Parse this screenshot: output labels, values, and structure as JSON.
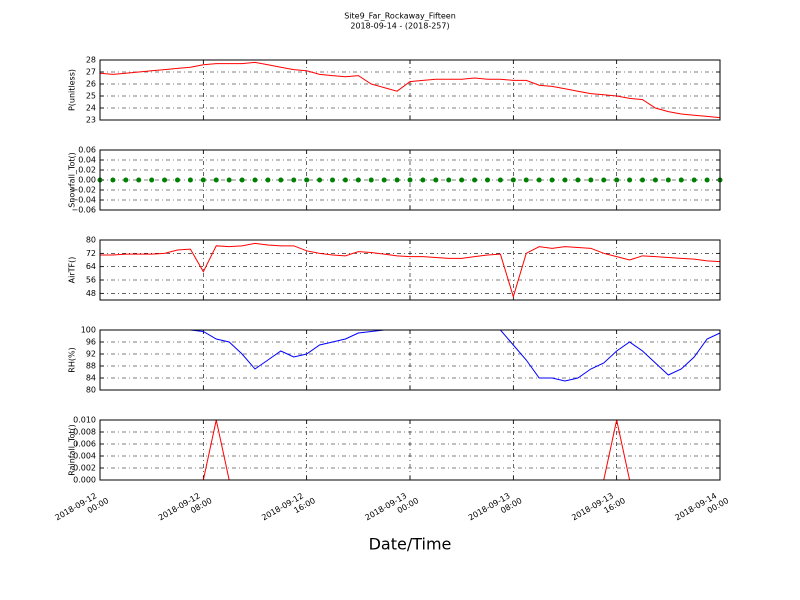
{
  "chart_data": [
    {
      "type": "line",
      "title": "Site9_Far_Rockaway_Fifteen",
      "subtitle": "2018-09-14 - (2018-257)",
      "ylabel": "P(unitless)",
      "grid": true,
      "x": [
        "2018-09-12 00:00",
        "2018-09-12 01:00",
        "2018-09-12 02:00",
        "2018-09-12 03:00",
        "2018-09-12 04:00",
        "2018-09-12 05:00",
        "2018-09-12 06:00",
        "2018-09-12 07:00",
        "2018-09-12 08:00",
        "2018-09-12 09:00",
        "2018-09-12 10:00",
        "2018-09-12 11:00",
        "2018-09-12 12:00",
        "2018-09-12 13:00",
        "2018-09-12 14:00",
        "2018-09-12 15:00",
        "2018-09-12 16:00",
        "2018-09-12 17:00",
        "2018-09-12 18:00",
        "2018-09-12 19:00",
        "2018-09-12 20:00",
        "2018-09-12 21:00",
        "2018-09-12 22:00",
        "2018-09-12 23:00",
        "2018-09-13 00:00",
        "2018-09-13 01:00",
        "2018-09-13 02:00",
        "2018-09-13 03:00",
        "2018-09-13 04:00",
        "2018-09-13 05:00",
        "2018-09-13 06:00",
        "2018-09-13 07:00",
        "2018-09-13 08:00",
        "2018-09-13 09:00",
        "2018-09-13 10:00",
        "2018-09-13 11:00",
        "2018-09-13 12:00",
        "2018-09-13 13:00",
        "2018-09-13 14:00",
        "2018-09-13 15:00",
        "2018-09-13 16:00",
        "2018-09-13 17:00",
        "2018-09-13 18:00",
        "2018-09-13 19:00",
        "2018-09-13 20:00",
        "2018-09-13 21:00",
        "2018-09-13 22:00",
        "2018-09-13 23:00",
        "2018-09-14 00:00"
      ],
      "series": [
        {
          "color": "#ff0000",
          "values": [
            26.9,
            26.8,
            26.9,
            27.0,
            27.1,
            27.2,
            27.3,
            27.4,
            27.6,
            27.7,
            27.7,
            27.7,
            27.8,
            27.6,
            27.4,
            27.2,
            27.1,
            26.8,
            26.7,
            26.6,
            26.7,
            26.0,
            25.7,
            25.4,
            26.2,
            26.3,
            26.4,
            26.4,
            26.4,
            26.5,
            26.4,
            26.4,
            26.3,
            26.3,
            25.9,
            25.8,
            25.6,
            25.4,
            25.2,
            25.1,
            25.0,
            24.8,
            24.7,
            24.0,
            23.7,
            23.5,
            23.4,
            23.3,
            23.2
          ]
        }
      ],
      "xlim": [
        "2018-09-12 00:00",
        "2018-09-14 00:00"
      ],
      "xticks": [
        "2018-09-12 00:00",
        "2018-09-12 08:00",
        "2018-09-12 16:00",
        "2018-09-13 00:00",
        "2018-09-13 08:00",
        "2018-09-13 16:00",
        "2018-09-14 00:00"
      ],
      "ylim": [
        23,
        28
      ],
      "yticks": [
        23,
        24,
        25,
        26,
        27,
        28
      ]
    },
    {
      "type": "scatter",
      "ylabel": "Snowfall_Tot()",
      "grid": true,
      "x": [
        "2018-09-12 00:00",
        "2018-09-12 01:00",
        "2018-09-12 02:00",
        "2018-09-12 03:00",
        "2018-09-12 04:00",
        "2018-09-12 05:00",
        "2018-09-12 06:00",
        "2018-09-12 07:00",
        "2018-09-12 08:00",
        "2018-09-12 09:00",
        "2018-09-12 10:00",
        "2018-09-12 11:00",
        "2018-09-12 12:00",
        "2018-09-12 13:00",
        "2018-09-12 14:00",
        "2018-09-12 15:00",
        "2018-09-12 16:00",
        "2018-09-12 17:00",
        "2018-09-12 18:00",
        "2018-09-12 19:00",
        "2018-09-12 20:00",
        "2018-09-12 21:00",
        "2018-09-12 22:00",
        "2018-09-12 23:00",
        "2018-09-13 00:00",
        "2018-09-13 01:00",
        "2018-09-13 02:00",
        "2018-09-13 03:00",
        "2018-09-13 04:00",
        "2018-09-13 05:00",
        "2018-09-13 06:00",
        "2018-09-13 07:00",
        "2018-09-13 08:00",
        "2018-09-13 09:00",
        "2018-09-13 10:00",
        "2018-09-13 11:00",
        "2018-09-13 12:00",
        "2018-09-13 13:00",
        "2018-09-13 14:00",
        "2018-09-13 15:00",
        "2018-09-13 16:00",
        "2018-09-13 17:00",
        "2018-09-13 18:00",
        "2018-09-13 19:00",
        "2018-09-13 20:00",
        "2018-09-13 21:00",
        "2018-09-13 22:00",
        "2018-09-13 23:00",
        "2018-09-14 00:00"
      ],
      "series": [
        {
          "color": "#008000",
          "values": [
            0,
            0,
            0,
            0,
            0,
            0,
            0,
            0,
            0,
            0,
            0,
            0,
            0,
            0,
            0,
            0,
            0,
            0,
            0,
            0,
            0,
            0,
            0,
            0,
            0,
            0,
            0,
            0,
            0,
            0,
            0,
            0,
            0,
            0,
            0,
            0,
            0,
            0,
            0,
            0,
            0,
            0,
            0,
            0,
            0,
            0,
            0,
            0,
            0
          ]
        }
      ],
      "xlim": [
        "2018-09-12 00:00",
        "2018-09-14 00:00"
      ],
      "xticks": [
        "2018-09-12 00:00",
        "2018-09-12 08:00",
        "2018-09-12 16:00",
        "2018-09-13 00:00",
        "2018-09-13 08:00",
        "2018-09-13 16:00",
        "2018-09-14 00:00"
      ],
      "ylim": [
        -0.06,
        0.06
      ],
      "yticks": [
        {
          "value": -0.06,
          "label": "−0.06"
        },
        {
          "value": -0.04,
          "label": "−0.04"
        },
        {
          "value": -0.02,
          "label": "−0.02"
        },
        {
          "value": 0,
          "label": "0.00"
        },
        0.02,
        0.04,
        0.06
      ]
    },
    {
      "type": "line",
      "ylabel": "AirTF()",
      "grid": true,
      "x": [
        "2018-09-12 00:00",
        "2018-09-12 01:00",
        "2018-09-12 02:00",
        "2018-09-12 03:00",
        "2018-09-12 04:00",
        "2018-09-12 05:00",
        "2018-09-12 06:00",
        "2018-09-12 07:00",
        "2018-09-12 08:00",
        "2018-09-12 09:00",
        "2018-09-12 10:00",
        "2018-09-12 11:00",
        "2018-09-12 12:00",
        "2018-09-12 13:00",
        "2018-09-12 14:00",
        "2018-09-12 15:00",
        "2018-09-12 16:00",
        "2018-09-12 17:00",
        "2018-09-12 18:00",
        "2018-09-12 19:00",
        "2018-09-12 20:00",
        "2018-09-12 21:00",
        "2018-09-12 22:00",
        "2018-09-12 23:00",
        "2018-09-13 00:00",
        "2018-09-13 01:00",
        "2018-09-13 02:00",
        "2018-09-13 03:00",
        "2018-09-13 04:00",
        "2018-09-13 05:00",
        "2018-09-13 06:00",
        "2018-09-13 07:00",
        "2018-09-13 08:00",
        "2018-09-13 09:00",
        "2018-09-13 10:00",
        "2018-09-13 11:00",
        "2018-09-13 12:00",
        "2018-09-13 13:00",
        "2018-09-13 14:00",
        "2018-09-13 15:00",
        "2018-09-13 16:00",
        "2018-09-13 17:00",
        "2018-09-13 18:00",
        "2018-09-13 19:00",
        "2018-09-13 20:00",
        "2018-09-13 21:00",
        "2018-09-13 22:00",
        "2018-09-13 23:00",
        "2018-09-14 00:00"
      ],
      "series": [
        {
          "color": "#ff0000",
          "values": [
            71,
            71,
            71.5,
            71.5,
            71.5,
            72,
            74,
            74.5,
            61,
            76.5,
            76,
            76.5,
            78,
            77,
            76.5,
            76.5,
            73.5,
            72,
            71,
            70.5,
            73,
            72.5,
            71.5,
            70.5,
            70,
            70,
            69.5,
            69,
            69,
            70,
            71,
            71.5,
            46,
            72,
            76,
            75,
            76,
            75.5,
            75,
            72,
            70,
            68,
            70.5,
            70,
            69.5,
            69,
            68.5,
            67.5,
            67
          ]
        }
      ],
      "xlim": [
        "2018-09-12 00:00",
        "2018-09-14 00:00"
      ],
      "xticks": [
        "2018-09-12 00:00",
        "2018-09-12 08:00",
        "2018-09-12 16:00",
        "2018-09-13 00:00",
        "2018-09-13 08:00",
        "2018-09-13 16:00",
        "2018-09-14 00:00"
      ],
      "ylim": [
        44,
        80
      ],
      "yticks": [
        48,
        56,
        64,
        72,
        80
      ]
    },
    {
      "type": "line",
      "ylabel": "RH(%)",
      "grid": true,
      "x": [
        "2018-09-12 00:00",
        "2018-09-12 01:00",
        "2018-09-12 02:00",
        "2018-09-12 03:00",
        "2018-09-12 04:00",
        "2018-09-12 05:00",
        "2018-09-12 06:00",
        "2018-09-12 07:00",
        "2018-09-12 08:00",
        "2018-09-12 09:00",
        "2018-09-12 10:00",
        "2018-09-12 11:00",
        "2018-09-12 12:00",
        "2018-09-12 13:00",
        "2018-09-12 14:00",
        "2018-09-12 15:00",
        "2018-09-12 16:00",
        "2018-09-12 17:00",
        "2018-09-12 18:00",
        "2018-09-12 19:00",
        "2018-09-12 20:00",
        "2018-09-12 21:00",
        "2018-09-12 22:00",
        "2018-09-12 23:00",
        "2018-09-13 00:00",
        "2018-09-13 01:00",
        "2018-09-13 02:00",
        "2018-09-13 03:00",
        "2018-09-13 04:00",
        "2018-09-13 05:00",
        "2018-09-13 06:00",
        "2018-09-13 07:00",
        "2018-09-13 08:00",
        "2018-09-13 09:00",
        "2018-09-13 10:00",
        "2018-09-13 11:00",
        "2018-09-13 12:00",
        "2018-09-13 13:00",
        "2018-09-13 14:00",
        "2018-09-13 15:00",
        "2018-09-13 16:00",
        "2018-09-13 17:00",
        "2018-09-13 18:00",
        "2018-09-13 19:00",
        "2018-09-13 20:00",
        "2018-09-13 21:00",
        "2018-09-13 22:00",
        "2018-09-13 23:00",
        "2018-09-14 00:00"
      ],
      "series": [
        {
          "color": "#0000ff",
          "values": [
            100,
            100,
            100,
            100,
            100,
            100,
            100,
            100,
            99.5,
            97,
            96,
            92,
            87,
            90,
            93,
            91,
            92,
            95,
            96,
            97,
            99,
            99.5,
            100,
            100,
            100,
            100,
            100,
            100,
            100,
            100,
            100,
            100,
            95,
            90,
            84,
            84,
            83,
            84,
            87,
            89,
            93,
            96,
            93,
            89,
            85,
            87,
            91,
            97,
            99
          ]
        }
      ],
      "xlim": [
        "2018-09-12 00:00",
        "2018-09-14 00:00"
      ],
      "xticks": [
        "2018-09-12 00:00",
        "2018-09-12 08:00",
        "2018-09-12 16:00",
        "2018-09-13 00:00",
        "2018-09-13 08:00",
        "2018-09-13 16:00",
        "2018-09-14 00:00"
      ],
      "ylim": [
        80,
        100
      ],
      "yticks": [
        80,
        84,
        88,
        92,
        96,
        100
      ]
    },
    {
      "type": "line",
      "ylabel": "Rainfall_Tot()",
      "xlabel": "Date/Time",
      "grid": true,
      "x": [
        "2018-09-12 00:00",
        "2018-09-12 01:00",
        "2018-09-12 02:00",
        "2018-09-12 03:00",
        "2018-09-12 04:00",
        "2018-09-12 05:00",
        "2018-09-12 06:00",
        "2018-09-12 07:00",
        "2018-09-12 08:00",
        "2018-09-12 09:00",
        "2018-09-12 10:00",
        "2018-09-12 11:00",
        "2018-09-12 12:00",
        "2018-09-12 13:00",
        "2018-09-12 14:00",
        "2018-09-12 15:00",
        "2018-09-12 16:00",
        "2018-09-12 17:00",
        "2018-09-12 18:00",
        "2018-09-12 19:00",
        "2018-09-12 20:00",
        "2018-09-12 21:00",
        "2018-09-12 22:00",
        "2018-09-12 23:00",
        "2018-09-13 00:00",
        "2018-09-13 01:00",
        "2018-09-13 02:00",
        "2018-09-13 03:00",
        "2018-09-13 04:00",
        "2018-09-13 05:00",
        "2018-09-13 06:00",
        "2018-09-13 07:00",
        "2018-09-13 08:00",
        "2018-09-13 09:00",
        "2018-09-13 10:00",
        "2018-09-13 11:00",
        "2018-09-13 12:00",
        "2018-09-13 13:00",
        "2018-09-13 14:00",
        "2018-09-13 15:00",
        "2018-09-13 16:00",
        "2018-09-13 17:00",
        "2018-09-13 18:00",
        "2018-09-13 19:00",
        "2018-09-13 20:00",
        "2018-09-13 21:00",
        "2018-09-13 22:00",
        "2018-09-13 23:00",
        "2018-09-14 00:00"
      ],
      "series": [
        {
          "color": "#ff0000",
          "values": [
            0,
            0,
            0,
            0,
            0,
            0,
            0,
            0,
            0,
            0.01,
            0,
            0,
            0,
            0,
            0,
            0,
            0,
            0,
            0,
            0,
            0,
            0,
            0,
            0,
            0,
            0,
            0,
            0,
            0,
            0,
            0,
            0,
            0,
            0,
            0,
            0,
            0,
            0,
            0,
            0,
            0.01,
            0,
            0,
            0,
            0,
            0,
            0,
            0,
            0
          ]
        }
      ],
      "xlim": [
        "2018-09-12 00:00",
        "2018-09-14 00:00"
      ],
      "xticks": [
        {
          "value": "2018-09-12 00:00",
          "label": [
            "2018-09-12",
            "00:00"
          ]
        },
        {
          "value": "2018-09-12 08:00",
          "label": [
            "2018-09-12",
            "08:00"
          ]
        },
        {
          "value": "2018-09-12 16:00",
          "label": [
            "2018-09-12",
            "16:00"
          ]
        },
        {
          "value": "2018-09-13 00:00",
          "label": [
            "2018-09-13",
            "00:00"
          ]
        },
        {
          "value": "2018-09-13 08:00",
          "label": [
            "2018-09-13",
            "08:00"
          ]
        },
        {
          "value": "2018-09-13 16:00",
          "label": [
            "2018-09-13",
            "16:00"
          ]
        },
        {
          "value": "2018-09-14 00:00",
          "label": [
            "2018-09-14",
            "00:00"
          ]
        }
      ],
      "ylim": [
        0,
        0.01
      ],
      "yticks": [
        {
          "value": 0,
          "label": "0.000"
        },
        {
          "value": 0.002,
          "label": "0.002"
        },
        {
          "value": 0.004,
          "label": "0.004"
        },
        {
          "value": 0.006,
          "label": "0.006"
        },
        {
          "value": 0.008,
          "label": "0.008"
        },
        {
          "value": 0.01,
          "label": "0.010"
        }
      ]
    }
  ]
}
